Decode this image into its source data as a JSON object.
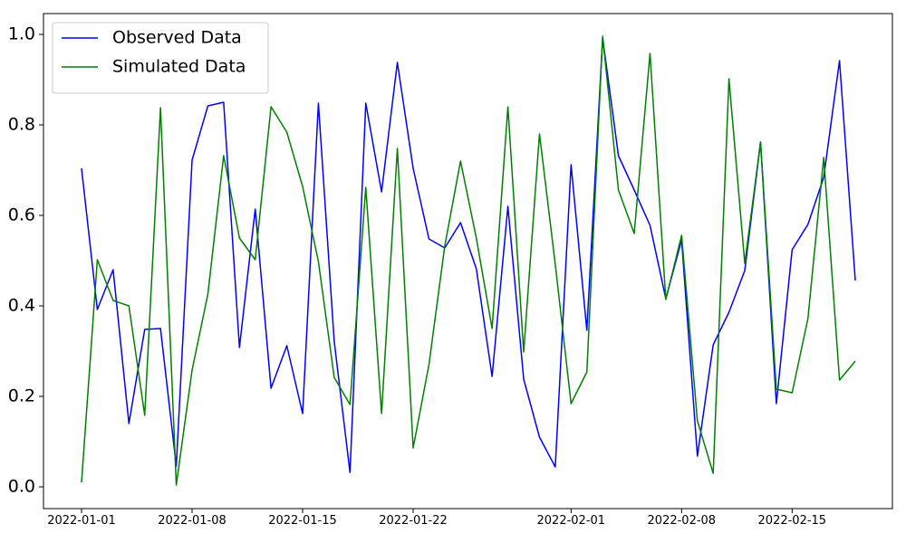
{
  "chart_data": {
    "type": "line",
    "x": [
      "2022-01-01",
      "2022-01-02",
      "2022-01-03",
      "2022-01-04",
      "2022-01-05",
      "2022-01-06",
      "2022-01-07",
      "2022-01-08",
      "2022-01-09",
      "2022-01-10",
      "2022-01-11",
      "2022-01-12",
      "2022-01-13",
      "2022-01-14",
      "2022-01-15",
      "2022-01-16",
      "2022-01-17",
      "2022-01-18",
      "2022-01-19",
      "2022-01-20",
      "2022-01-21",
      "2022-01-22",
      "2022-01-23",
      "2022-01-24",
      "2022-01-25",
      "2022-01-26",
      "2022-01-27",
      "2022-01-28",
      "2022-01-29",
      "2022-01-30",
      "2022-01-31",
      "2022-02-01",
      "2022-02-02",
      "2022-02-03",
      "2022-02-04",
      "2022-02-05",
      "2022-02-06",
      "2022-02-07",
      "2022-02-08",
      "2022-02-09",
      "2022-02-10",
      "2022-02-11",
      "2022-02-12",
      "2022-02-13",
      "2022-02-14",
      "2022-02-15",
      "2022-02-16",
      "2022-02-17",
      "2022-02-18",
      "2022-02-19"
    ],
    "series": [
      {
        "name": "Observed Data",
        "color": "#0000ff",
        "values": [
          0.704,
          0.392,
          0.48,
          0.14,
          0.348,
          0.35,
          0.046,
          0.722,
          0.842,
          0.85,
          0.308,
          0.614,
          0.218,
          0.312,
          0.162,
          0.848,
          0.322,
          0.032,
          0.848,
          0.652,
          0.938,
          0.704,
          0.548,
          0.528,
          0.584,
          0.482,
          0.244,
          0.62,
          0.238,
          0.11,
          0.044,
          0.712,
          0.346,
          0.992,
          0.732,
          0.656,
          0.578,
          0.416,
          0.546,
          0.068,
          0.314,
          0.386,
          0.478,
          0.762,
          0.184,
          0.524,
          0.58,
          0.684,
          0.942,
          0.456
        ]
      },
      {
        "name": "Simulated Data",
        "color": "#008000",
        "values": [
          0.01,
          0.502,
          0.412,
          0.4,
          0.158,
          0.838,
          0.004,
          0.258,
          0.426,
          0.732,
          0.55,
          0.502,
          0.84,
          0.784,
          0.664,
          0.498,
          0.242,
          0.182,
          0.662,
          0.162,
          0.748,
          0.086,
          0.27,
          0.532,
          0.72,
          0.55,
          0.35,
          0.84,
          0.298,
          0.78,
          0.492,
          0.184,
          0.254,
          0.996,
          0.656,
          0.56,
          0.958,
          0.414,
          0.556,
          0.146,
          0.03,
          0.902,
          0.494,
          0.762,
          0.216,
          0.208,
          0.372,
          0.728,
          0.236,
          0.278
        ]
      }
    ],
    "xlim": [
      "2021-12-29T14:10",
      "2022-02-21T08:24"
    ],
    "xticks": [
      "2022-01-01",
      "2022-01-08",
      "2022-01-15",
      "2022-01-22",
      "2022-02-01",
      "2022-02-08",
      "2022-02-15"
    ],
    "ylim": [
      -0.048,
      1.046
    ],
    "yticks": [
      {
        "value": 0,
        "label": "0.0"
      },
      0.2,
      0.4,
      0.6,
      0.8,
      {
        "value": 1,
        "label": "1.0"
      }
    ],
    "grid": false,
    "legend": "upper-left"
  }
}
